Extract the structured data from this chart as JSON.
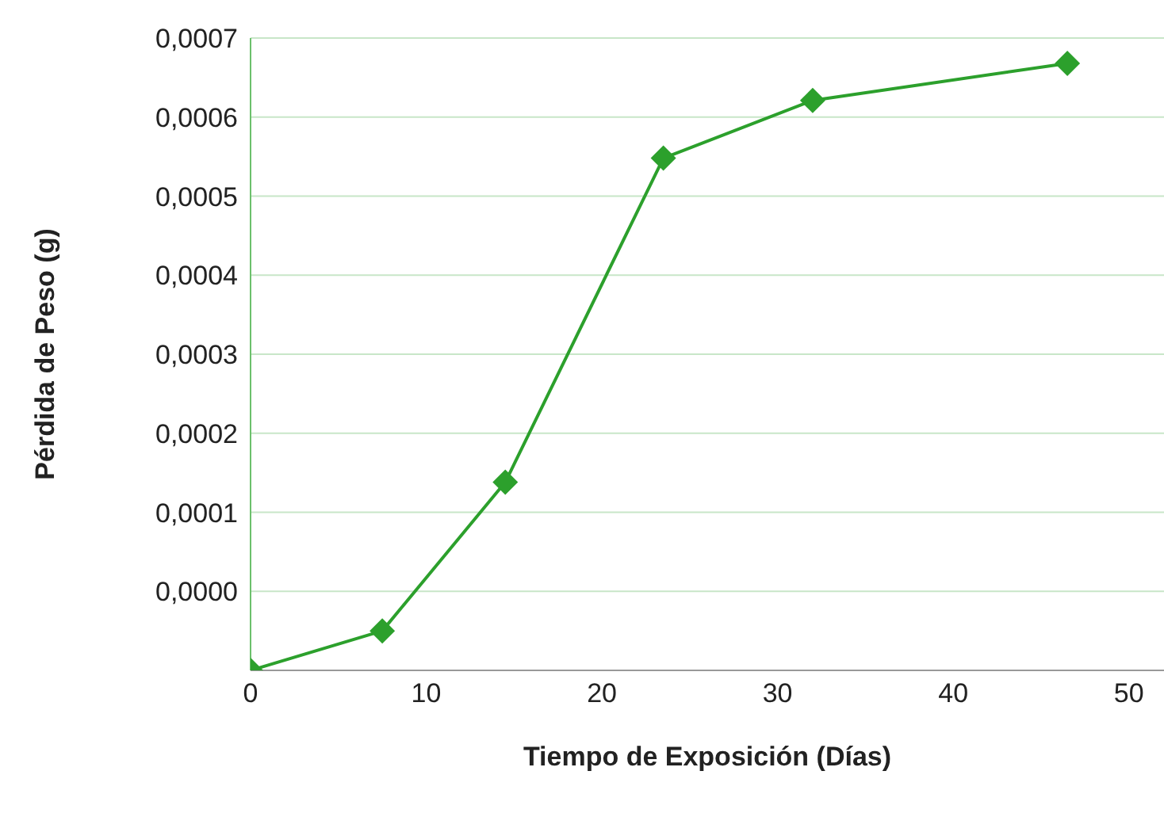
{
  "chart_data": {
    "type": "line",
    "xlabel": "Tiempo de Exposición (Días)",
    "ylabel": "Pérdida de Peso (g)",
    "x": [
      0,
      7.5,
      14.5,
      23.5,
      32,
      46.5
    ],
    "series": [
      {
        "color": "#2ca02c",
        "values": [
          -0.0001,
          -5e-05,
          0.000138,
          0.000548,
          0.000621,
          0.000668
        ]
      }
    ],
    "xlim": [
      0,
      52
    ],
    "xticks": [
      0,
      10,
      20,
      30,
      40,
      50
    ],
    "ylim": [
      -0.0001,
      0.0007
    ],
    "yticks": [
      {
        "value": -0.0001,
        "label": null
      },
      {
        "value": 0,
        "label": "0,0000"
      },
      {
        "value": 0.0001,
        "label": "0,0001"
      },
      {
        "value": 0.0002,
        "label": "0,0002"
      },
      {
        "value": 0.0003,
        "label": "0,0003"
      },
      {
        "value": 0.0004,
        "label": "0,0004"
      },
      {
        "value": 0.0005,
        "label": "0,0005"
      },
      {
        "value": 0.0006,
        "label": "0,0006"
      },
      {
        "value": 0.0007,
        "label": "0,0007"
      }
    ],
    "grid": "y",
    "marker": "diamond",
    "line_style": "solid"
  }
}
